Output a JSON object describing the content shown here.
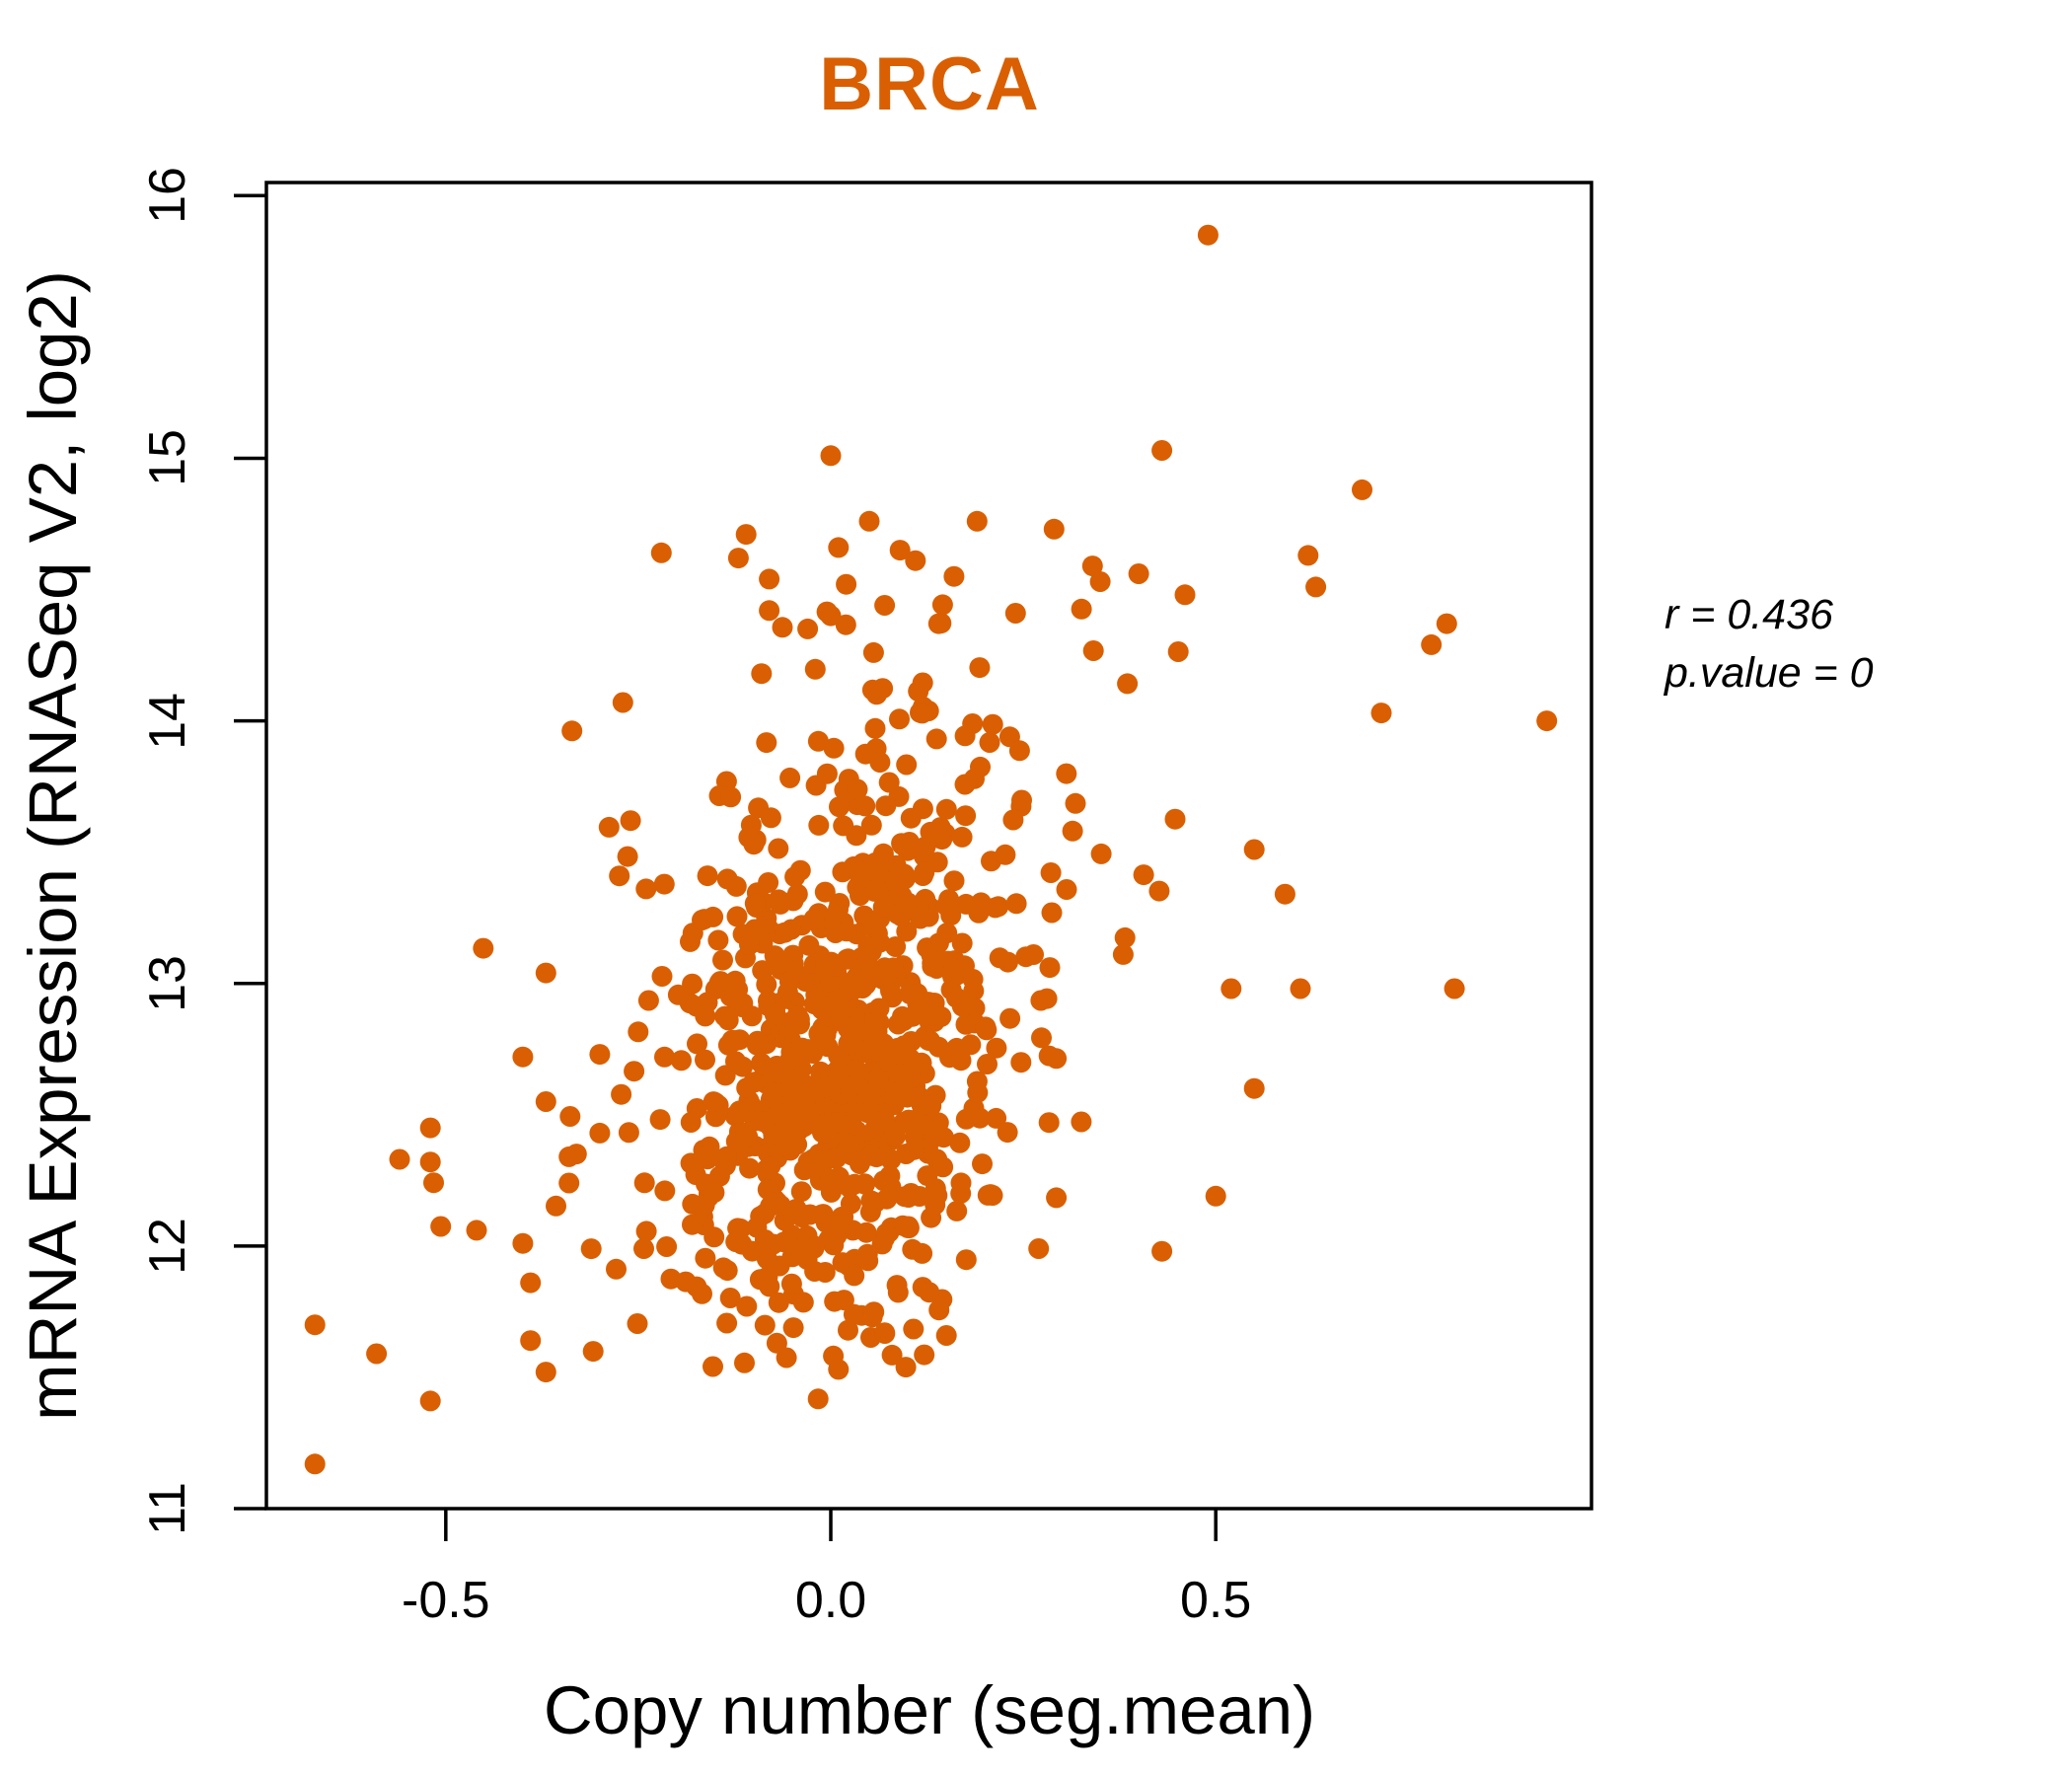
{
  "title": {
    "text": "BRCA",
    "color": "#D95F02"
  },
  "annotation": {
    "line1": "r = 0.436",
    "line2": "p.value = 0"
  },
  "chart_data": {
    "type": "scatter",
    "title": "BRCA",
    "xlabel": "Copy number (seg.mean)",
    "ylabel": "mRNA Expression (RNASeq V2, log2)",
    "xlim": [
      -0.733,
      0.988
    ],
    "ylim": [
      11,
      16.05
    ],
    "x_ticks": [
      -0.5,
      0.0,
      0.5
    ],
    "x_tick_labels": [
      "-0.5",
      "0.0",
      "0.5"
    ],
    "y_ticks": [
      11,
      12,
      13,
      14,
      15,
      16
    ],
    "y_tick_labels": [
      "11",
      "12",
      "13",
      "14",
      "15",
      "16"
    ],
    "grid": false,
    "legend": false,
    "point_color": "#D95F02",
    "point_radius_px": 10.5,
    "stats": {
      "r": 0.436,
      "p_value": 0
    },
    "n_points_approx": 920,
    "outlier_points": [
      [
        0.49,
        15.85
      ],
      [
        0.43,
        15.03
      ],
      [
        0.0,
        15.01
      ],
      [
        0.69,
        14.88
      ],
      [
        0.05,
        14.76
      ],
      [
        0.19,
        14.76
      ],
      [
        0.29,
        14.73
      ],
      [
        -0.11,
        14.71
      ],
      [
        0.01,
        14.66
      ],
      [
        0.09,
        14.65
      ],
      [
        -0.12,
        14.62
      ],
      [
        0.11,
        14.61
      ],
      [
        0.62,
        14.63
      ],
      [
        0.63,
        14.51
      ],
      [
        0.34,
        14.59
      ],
      [
        0.4,
        14.56
      ],
      [
        0.46,
        14.48
      ],
      [
        -0.08,
        14.54
      ],
      [
        0.02,
        14.52
      ],
      [
        0.16,
        14.55
      ],
      [
        -0.22,
        14.64
      ],
      [
        0.35,
        14.53
      ],
      [
        0.24,
        14.41
      ],
      [
        0.14,
        14.37
      ],
      [
        -0.03,
        14.35
      ],
      [
        0.07,
        14.44
      ],
      [
        -0.08,
        14.42
      ],
      [
        0.0,
        14.4
      ],
      [
        -0.09,
        14.18
      ],
      [
        -0.27,
        14.07
      ],
      [
        -0.13,
        13.71
      ],
      [
        -0.1,
        13.53
      ],
      [
        -0.16,
        13.41
      ],
      [
        -0.26,
        13.62
      ],
      [
        0.8,
        14.37
      ],
      [
        0.78,
        14.29
      ],
      [
        0.715,
        14.03
      ],
      [
        0.93,
        14.0
      ],
      [
        0.81,
        12.98
      ],
      [
        0.55,
        13.51
      ],
      [
        0.59,
        13.34
      ],
      [
        0.52,
        12.98
      ],
      [
        0.61,
        12.98
      ],
      [
        0.55,
        12.6
      ],
      [
        0.5,
        12.19
      ],
      [
        0.43,
        11.98
      ],
      [
        -0.67,
        11.7
      ],
      [
        -0.67,
        11.17
      ],
      [
        -0.59,
        11.59
      ],
      [
        -0.52,
        11.41
      ],
      [
        -0.56,
        12.33
      ],
      [
        -0.52,
        12.32
      ],
      [
        -0.52,
        12.45
      ],
      [
        -0.46,
        12.06
      ],
      [
        -0.4,
        12.72
      ],
      [
        -0.4,
        12.01
      ],
      [
        -0.39,
        11.86
      ],
      [
        -0.39,
        11.64
      ],
      [
        -0.37,
        13.04
      ],
      [
        -0.37,
        12.55
      ],
      [
        -0.37,
        11.52
      ],
      [
        -0.34,
        12.34
      ],
      [
        -0.34,
        12.24
      ],
      [
        -0.3,
        12.73
      ],
      [
        -0.3,
        12.43
      ],
      [
        0.03,
        11.74
      ],
      [
        0.07,
        11.67
      ],
      [
        -0.07,
        11.63
      ],
      [
        0.01,
        11.53
      ],
      [
        0.27,
        11.99
      ]
    ],
    "point_cloud": {
      "note": "approximation of the dense unlabeled cloud; bivariate gaussian mixture matching r=0.436",
      "seed": 7,
      "components": [
        {
          "n": 640,
          "x_mean": 0.015,
          "x_sd": 0.09,
          "slope": 1.5,
          "y_intercept": 12.75,
          "y_noise_sd": 0.52
        },
        {
          "n": 210,
          "x_mean": 0.03,
          "x_sd": 0.21,
          "slope": 1.5,
          "y_intercept": 12.82,
          "y_noise_sd": 0.7
        }
      ],
      "x_bounds": [
        -0.6,
        0.62
      ],
      "y_bounds": [
        11.4,
        14.45
      ]
    }
  }
}
